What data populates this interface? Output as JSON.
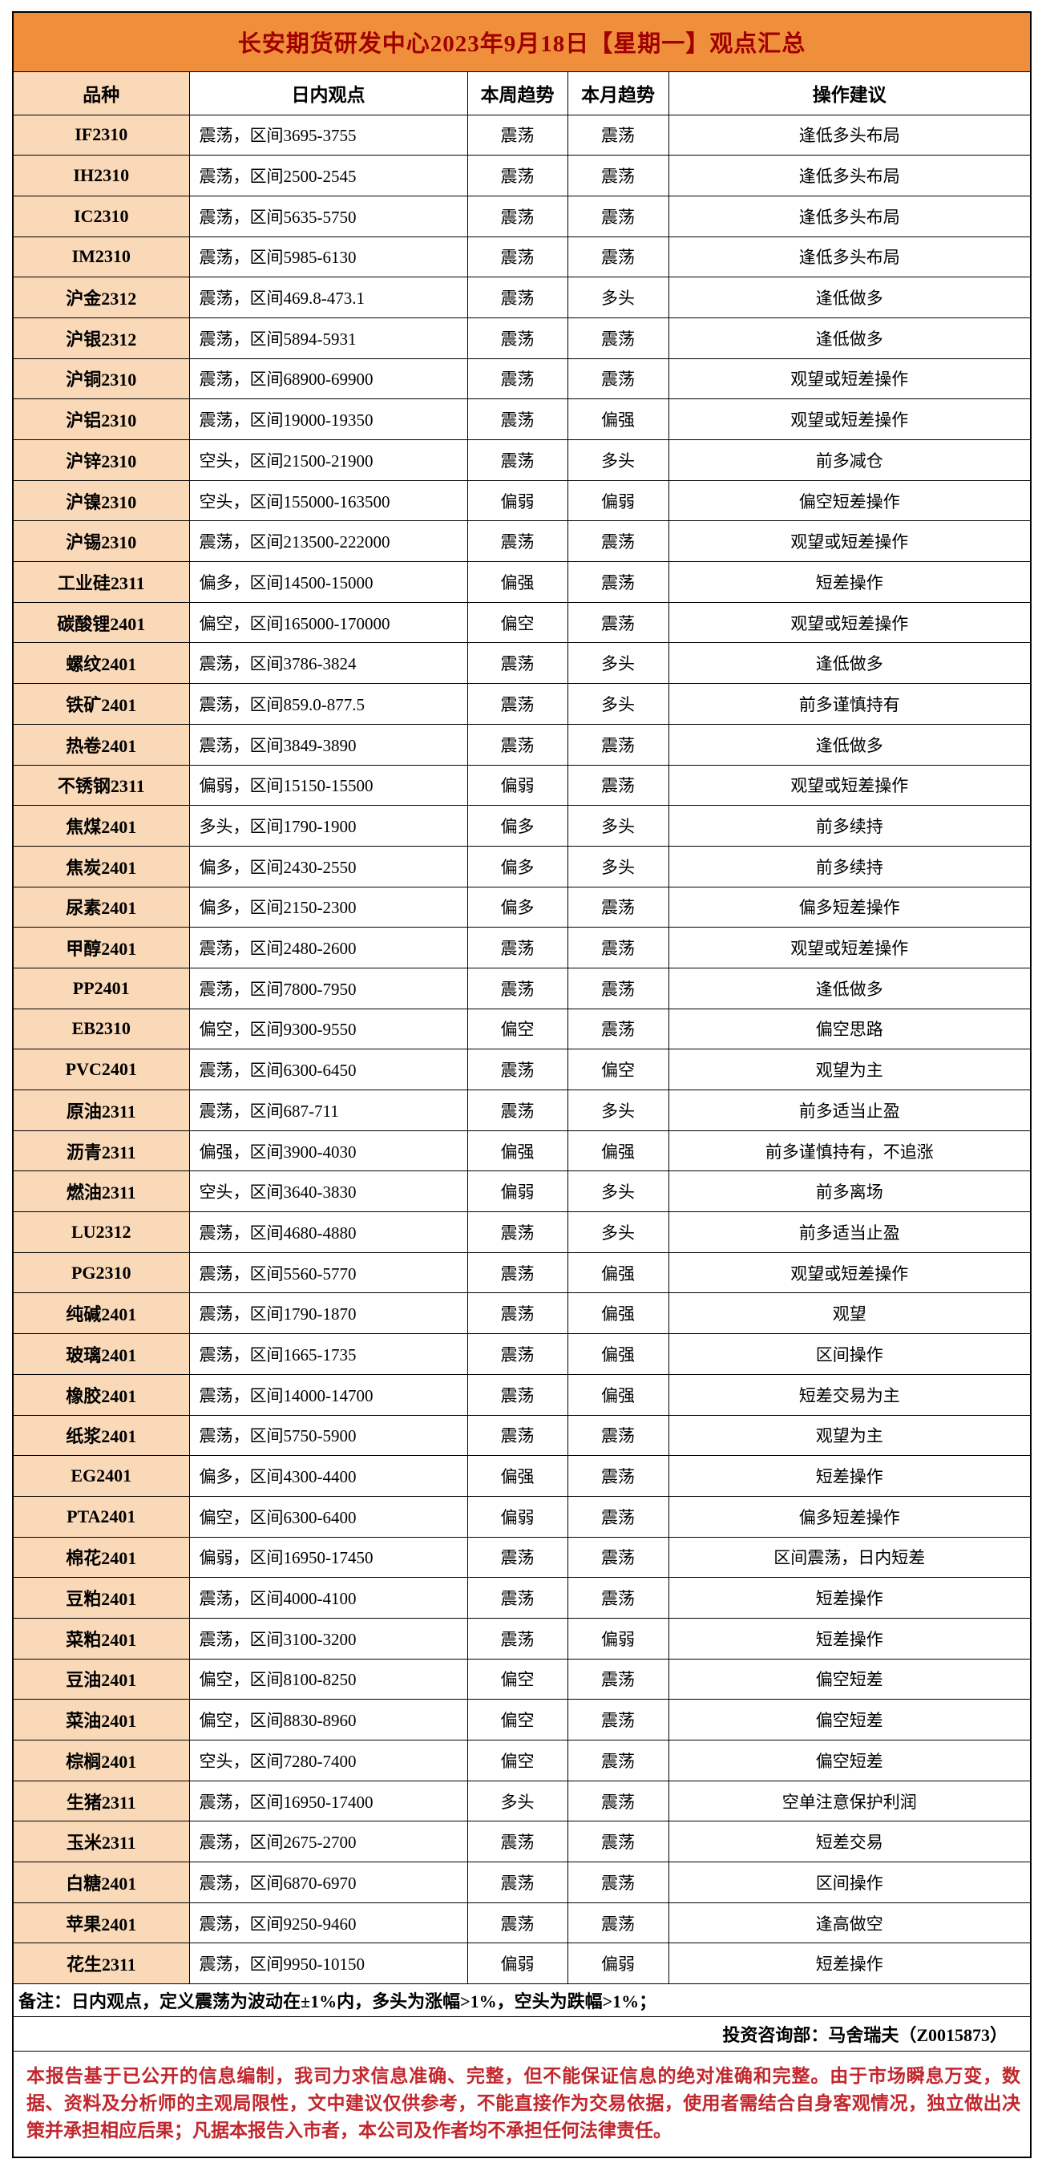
{
  "report": {
    "title": "长安期货研发中心2023年9月18日【星期一】观点汇总",
    "columns": [
      "品种",
      "日内观点",
      "本周趋势",
      "本月趋势",
      "操作建议"
    ],
    "rows": [
      [
        "IF2310",
        "震荡，区间3695-3755",
        "震荡",
        "震荡",
        "逢低多头布局"
      ],
      [
        "IH2310",
        "震荡，区间2500-2545",
        "震荡",
        "震荡",
        "逢低多头布局"
      ],
      [
        "IC2310",
        "震荡，区间5635-5750",
        "震荡",
        "震荡",
        "逢低多头布局"
      ],
      [
        "IM2310",
        "震荡，区间5985-6130",
        "震荡",
        "震荡",
        "逢低多头布局"
      ],
      [
        "沪金2312",
        "震荡，区间469.8-473.1",
        "震荡",
        "多头",
        "逢低做多"
      ],
      [
        "沪银2312",
        "震荡，区间5894-5931",
        "震荡",
        "震荡",
        "逢低做多"
      ],
      [
        "沪铜2310",
        "震荡，区间68900-69900",
        "震荡",
        "震荡",
        "观望或短差操作"
      ],
      [
        "沪铝2310",
        "震荡，区间19000-19350",
        "震荡",
        "偏强",
        "观望或短差操作"
      ],
      [
        "沪锌2310",
        "空头，区间21500-21900",
        "震荡",
        "多头",
        "前多减仓"
      ],
      [
        "沪镍2310",
        "空头，区间155000-163500",
        "偏弱",
        "偏弱",
        "偏空短差操作"
      ],
      [
        "沪锡2310",
        "震荡，区间213500-222000",
        "震荡",
        "震荡",
        "观望或短差操作"
      ],
      [
        "工业硅2311",
        "偏多，区间14500-15000",
        "偏强",
        "震荡",
        "短差操作"
      ],
      [
        "碳酸锂2401",
        "偏空，区间165000-170000",
        "偏空",
        "震荡",
        "观望或短差操作"
      ],
      [
        "螺纹2401",
        "震荡，区间3786-3824",
        "震荡",
        "多头",
        "逢低做多"
      ],
      [
        "铁矿2401",
        "震荡，区间859.0-877.5",
        "震荡",
        "多头",
        "前多谨慎持有"
      ],
      [
        "热卷2401",
        "震荡，区间3849-3890",
        "震荡",
        "震荡",
        "逢低做多"
      ],
      [
        "不锈钢2311",
        "偏弱，区间15150-15500",
        "偏弱",
        "震荡",
        "观望或短差操作"
      ],
      [
        "焦煤2401",
        "多头，区间1790-1900",
        "偏多",
        "多头",
        "前多续持"
      ],
      [
        "焦炭2401",
        "偏多，区间2430-2550",
        "偏多",
        "多头",
        "前多续持"
      ],
      [
        "尿素2401",
        "偏多，区间2150-2300",
        "偏多",
        "震荡",
        "偏多短差操作"
      ],
      [
        "甲醇2401",
        "震荡，区间2480-2600",
        "震荡",
        "震荡",
        "观望或短差操作"
      ],
      [
        "PP2401",
        "震荡，区间7800-7950",
        "震荡",
        "震荡",
        "逢低做多"
      ],
      [
        "EB2310",
        "偏空，区间9300-9550",
        "偏空",
        "震荡",
        "偏空思路"
      ],
      [
        "PVC2401",
        "震荡，区间6300-6450",
        "震荡",
        "偏空",
        "观望为主"
      ],
      [
        "原油2311",
        "震荡，区间687-711",
        "震荡",
        "多头",
        "前多适当止盈"
      ],
      [
        "沥青2311",
        "偏强，区间3900-4030",
        "偏强",
        "偏强",
        "前多谨慎持有，不追涨"
      ],
      [
        "燃油2311",
        "空头，区间3640-3830",
        "偏弱",
        "多头",
        "前多离场"
      ],
      [
        "LU2312",
        "震荡，区间4680-4880",
        "震荡",
        "多头",
        "前多适当止盈"
      ],
      [
        "PG2310",
        "震荡，区间5560-5770",
        "震荡",
        "偏强",
        "观望或短差操作"
      ],
      [
        "纯碱2401",
        "震荡，区间1790-1870",
        "震荡",
        "偏强",
        "观望"
      ],
      [
        "玻璃2401",
        "震荡，区间1665-1735",
        "震荡",
        "偏强",
        "区间操作"
      ],
      [
        "橡胶2401",
        "震荡，区间14000-14700",
        "震荡",
        "偏强",
        "短差交易为主"
      ],
      [
        "纸浆2401",
        "震荡，区间5750-5900",
        "震荡",
        "震荡",
        "观望为主"
      ],
      [
        "EG2401",
        "偏多，区间4300-4400",
        "偏强",
        "震荡",
        "短差操作"
      ],
      [
        "PTA2401",
        "偏空，区间6300-6400",
        "偏弱",
        "震荡",
        "偏多短差操作"
      ],
      [
        "棉花2401",
        "偏弱，区间16950-17450",
        "震荡",
        "震荡",
        "区间震荡，日内短差"
      ],
      [
        "豆粕2401",
        "震荡，区间4000-4100",
        "震荡",
        "震荡",
        "短差操作"
      ],
      [
        "菜粕2401",
        "震荡，区间3100-3200",
        "震荡",
        "偏弱",
        "短差操作"
      ],
      [
        "豆油2401",
        "偏空，区间8100-8250",
        "偏空",
        "震荡",
        "偏空短差"
      ],
      [
        "菜油2401",
        "偏空，区间8830-8960",
        "偏空",
        "震荡",
        "偏空短差"
      ],
      [
        "棕榈2401",
        "空头，区间7280-7400",
        "偏空",
        "震荡",
        "偏空短差"
      ],
      [
        "生猪2311",
        "震荡，区间16950-17400",
        "多头",
        "震荡",
        "空单注意保护利润"
      ],
      [
        "玉米2311",
        "震荡，区间2675-2700",
        "震荡",
        "震荡",
        "短差交易"
      ],
      [
        "白糖2401",
        "震荡，区间6870-6970",
        "震荡",
        "震荡",
        "区间操作"
      ],
      [
        "苹果2401",
        "震荡，区间9250-9460",
        "震荡",
        "震荡",
        "逢高做空"
      ],
      [
        "花生2311",
        "震荡，区间9950-10150",
        "偏弱",
        "偏弱",
        "短差操作"
      ]
    ],
    "note": "备注：日内观点，定义震荡为波动在±1%内，多头为涨幅>1%，空头为跌幅>1%；",
    "analyst": "投资咨询部：马舍瑞夫（Z0015873）",
    "disclaimer": "本报告基于已公开的信息编制，我司力求信息准确、完整，但不能保证信息的绝对准确和完整。由于市场瞬息万变，数据、资料及分析师的主观局限性，文中建议仅供参考，不能直接作为交易依据，使用者需结合自身客观情况，独立做出决策并承担相应后果；凡据本报告入市者，本公司及作者均不承担任何法律责任。",
    "colors": {
      "title_bg": "#EF8F3C",
      "title_text": "#A00000",
      "variety_bg": "#FAD9B8",
      "disclaimer_text": "#C1272D"
    }
  }
}
